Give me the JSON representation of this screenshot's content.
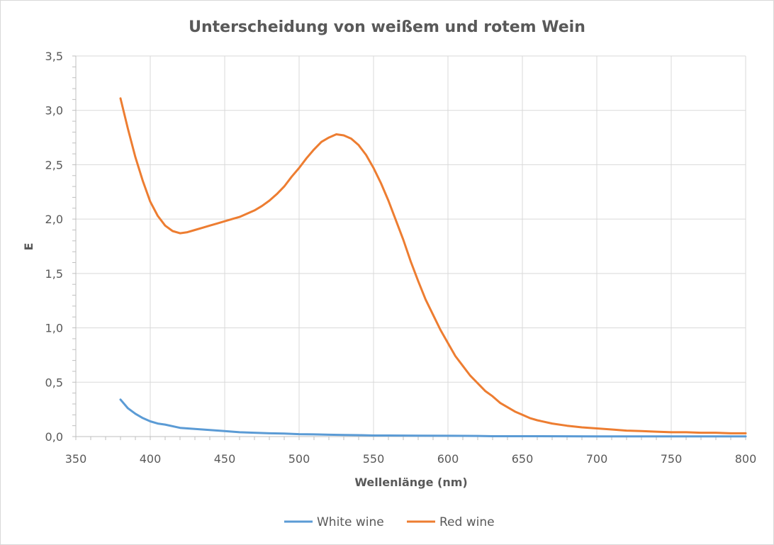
{
  "chart_data": {
    "type": "line",
    "title": "Unterscheidung von weißem und rotem Wein",
    "xlabel": "Wellenlänge (nm)",
    "ylabel": "E",
    "xlim": [
      350,
      800
    ],
    "ylim": [
      0,
      3.5
    ],
    "x_ticks": [
      350,
      400,
      450,
      500,
      550,
      600,
      650,
      700,
      750,
      800
    ],
    "y_ticks": [
      "0,0",
      "0,5",
      "1,0",
      "1,5",
      "2,0",
      "2,5",
      "3,0",
      "3,5"
    ],
    "grid": true,
    "legend_position": "bottom",
    "series": [
      {
        "name": "White wine",
        "color": "#5b9bd5",
        "x": [
          380,
          385,
          390,
          395,
          400,
          405,
          410,
          420,
          430,
          440,
          450,
          460,
          470,
          480,
          490,
          500,
          510,
          520,
          530,
          540,
          550,
          560,
          580,
          600,
          620,
          630,
          650,
          700,
          750,
          800
        ],
        "values": [
          0.34,
          0.26,
          0.21,
          0.17,
          0.14,
          0.12,
          0.11,
          0.08,
          0.07,
          0.06,
          0.05,
          0.04,
          0.035,
          0.03,
          0.028,
          0.022,
          0.02,
          0.017,
          0.015,
          0.013,
          0.01,
          0.01,
          0.008,
          0.007,
          0.006,
          0.003,
          0.003,
          0.002,
          0.002,
          0.002
        ]
      },
      {
        "name": "Red wine",
        "color": "#ed7d31",
        "x": [
          380,
          385,
          390,
          395,
          400,
          405,
          410,
          415,
          420,
          425,
          430,
          435,
          440,
          445,
          450,
          455,
          460,
          465,
          470,
          475,
          480,
          485,
          490,
          495,
          500,
          505,
          510,
          515,
          520,
          525,
          530,
          535,
          540,
          545,
          550,
          555,
          560,
          565,
          570,
          575,
          580,
          585,
          590,
          595,
          600,
          605,
          610,
          615,
          620,
          625,
          630,
          635,
          640,
          645,
          650,
          655,
          660,
          670,
          680,
          690,
          700,
          710,
          720,
          730,
          740,
          750,
          760,
          770,
          780,
          790,
          800
        ],
        "values": [
          3.11,
          2.83,
          2.57,
          2.35,
          2.16,
          2.03,
          1.94,
          1.89,
          1.87,
          1.88,
          1.9,
          1.92,
          1.94,
          1.96,
          1.98,
          2.0,
          2.02,
          2.05,
          2.08,
          2.12,
          2.17,
          2.23,
          2.3,
          2.39,
          2.47,
          2.56,
          2.64,
          2.71,
          2.75,
          2.78,
          2.77,
          2.74,
          2.68,
          2.59,
          2.47,
          2.33,
          2.17,
          1.99,
          1.81,
          1.61,
          1.43,
          1.26,
          1.12,
          0.98,
          0.86,
          0.74,
          0.65,
          0.56,
          0.49,
          0.42,
          0.37,
          0.31,
          0.27,
          0.23,
          0.2,
          0.17,
          0.15,
          0.12,
          0.1,
          0.085,
          0.075,
          0.065,
          0.055,
          0.05,
          0.045,
          0.04,
          0.04,
          0.035,
          0.035,
          0.03,
          0.03
        ]
      }
    ]
  }
}
